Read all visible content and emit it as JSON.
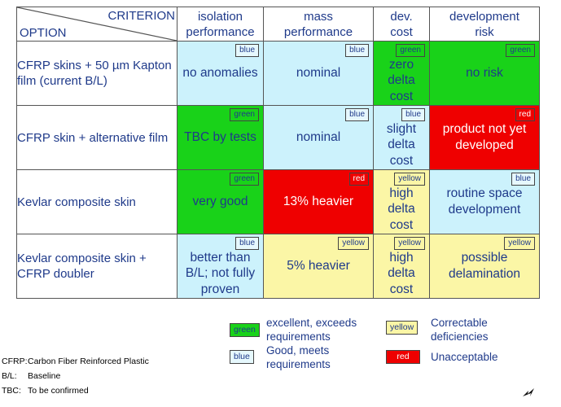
{
  "header": {
    "criterion": "CRITERION",
    "option": "OPTION",
    "columns": [
      {
        "line1": "isolation",
        "line2": "performance"
      },
      {
        "line1": "mass",
        "line2": "performance"
      },
      {
        "line1": "dev.",
        "line2": "cost"
      },
      {
        "line1": "development",
        "line2": "risk"
      }
    ]
  },
  "rows": [
    {
      "label": "CFRP skins + 50 µm Kapton film (current B/L)",
      "cells": [
        {
          "rating": "blue",
          "text": "no anomalies"
        },
        {
          "rating": "blue",
          "text": "nominal"
        },
        {
          "rating": "green",
          "text": "zero delta cost"
        },
        {
          "rating": "green",
          "text": "no risk"
        }
      ]
    },
    {
      "label": "CFRP skin + alternative film",
      "cells": [
        {
          "rating": "green",
          "text": "TBC by tests"
        },
        {
          "rating": "blue",
          "text": "nominal"
        },
        {
          "rating": "blue",
          "text": "slight delta cost"
        },
        {
          "rating": "red",
          "text": "product not yet developed"
        }
      ]
    },
    {
      "label": "Kevlar composite skin",
      "cells": [
        {
          "rating": "green",
          "text": "very good"
        },
        {
          "rating": "red",
          "text": "13% heavier"
        },
        {
          "rating": "yellow",
          "text": "high delta cost"
        },
        {
          "rating": "blue",
          "text": "routine space development"
        }
      ]
    },
    {
      "label": "Kevlar composite skin + CFRP doubler",
      "cells": [
        {
          "rating": "blue",
          "text": "better than B/L; not fully proven"
        },
        {
          "rating": "yellow",
          "text": "5% heavier"
        },
        {
          "rating": "yellow",
          "text": "high delta cost"
        },
        {
          "rating": "yellow",
          "text": "possible delamination"
        }
      ]
    }
  ],
  "legend": [
    {
      "tag": "green",
      "line1": "excellent, exceeds",
      "line2": "requirements"
    },
    {
      "tag": "blue",
      "line1": "Good, meets",
      "line2": "requirements"
    },
    {
      "tag": "yellow",
      "line1": "Correctable",
      "line2": "deficiencies"
    },
    {
      "tag": "red",
      "line1": "Unacceptable",
      "line2": ""
    }
  ],
  "abbreviations": [
    {
      "key": "CFRP:",
      "value": "Carbon Fiber Reinforced Plastic"
    },
    {
      "key": "B/L:",
      "value": "Baseline"
    },
    {
      "key": "TBC:",
      "value": "To be confirmed"
    }
  ],
  "colors": {
    "blue": "#ccf2fc",
    "green": "#19d219",
    "red": "#ef0000",
    "yellow": "#fbf6a6",
    "text": "#1f3a8a"
  }
}
